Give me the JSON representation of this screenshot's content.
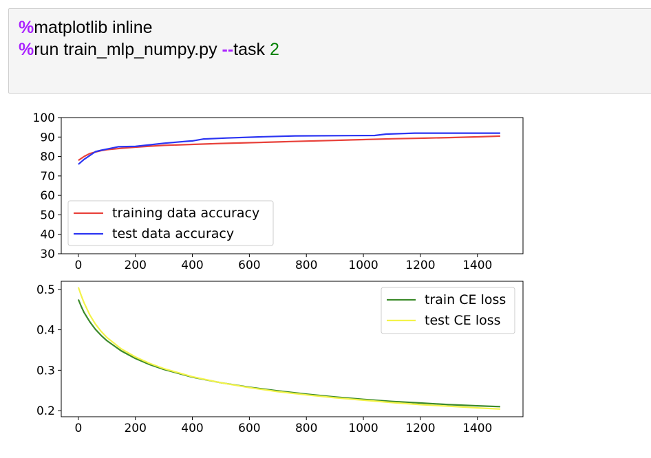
{
  "code": {
    "line1": {
      "magic": "%",
      "text": "matplotlib inline"
    },
    "line2": {
      "magic": "%",
      "cmd": "run train_mlp_numpy.py ",
      "flag": "--",
      "arg": "task ",
      "value": "2"
    }
  },
  "chart_data": [
    {
      "type": "line",
      "title": "",
      "xlabel": "",
      "ylabel": "",
      "xlim": [
        -60,
        1560
      ],
      "ylim": [
        30,
        100
      ],
      "xticks": [
        "0",
        "200",
        "400",
        "600",
        "800",
        "1000",
        "1200",
        "1400"
      ],
      "yticks": [
        "30",
        "40",
        "50",
        "60",
        "70",
        "80",
        "90",
        "100"
      ],
      "legend_position": "lower-left",
      "series": [
        {
          "name": "training data accuracy",
          "color": "#e8413a",
          "x": [
            0,
            20,
            40,
            60,
            80,
            100,
            150,
            200,
            250,
            300,
            400,
            500,
            600,
            700,
            800,
            900,
            1000,
            1100,
            1200,
            1300,
            1400,
            1480
          ],
          "y": [
            78,
            80,
            81.5,
            82.3,
            83,
            83.5,
            84.2,
            84.8,
            85.3,
            85.7,
            86.2,
            86.7,
            87.1,
            87.5,
            87.9,
            88.3,
            88.7,
            89.1,
            89.4,
            89.7,
            90.1,
            90.5
          ]
        },
        {
          "name": "test data accuracy",
          "color": "#2b34f2",
          "x": [
            0,
            20,
            40,
            60,
            80,
            100,
            140,
            200,
            250,
            300,
            380,
            400,
            440,
            520,
            640,
            760,
            1040,
            1080,
            1180,
            1300,
            1400,
            1480
          ],
          "y": [
            76,
            78.5,
            80.5,
            82.5,
            83.2,
            83.8,
            85,
            85.2,
            86,
            86.8,
            87.8,
            88,
            89,
            89.5,
            90.1,
            90.6,
            90.8,
            91.5,
            92,
            92,
            92,
            92
          ]
        }
      ]
    },
    {
      "type": "line",
      "title": "",
      "xlabel": "",
      "ylabel": "",
      "xlim": [
        -60,
        1560
      ],
      "ylim": [
        0.185,
        0.52
      ],
      "xticks": [
        "0",
        "200",
        "400",
        "600",
        "800",
        "1000",
        "1200",
        "1400"
      ],
      "yticks": [
        "0.2",
        "0.3",
        "0.4",
        "0.5"
      ],
      "legend_position": "upper-right",
      "series": [
        {
          "name": "train CE loss",
          "color": "#3b8a2a",
          "x": [
            0,
            10,
            20,
            40,
            60,
            80,
            100,
            150,
            200,
            250,
            300,
            400,
            500,
            600,
            700,
            800,
            900,
            1000,
            1100,
            1200,
            1300,
            1400,
            1480
          ],
          "y": [
            0.475,
            0.458,
            0.443,
            0.42,
            0.401,
            0.386,
            0.373,
            0.348,
            0.329,
            0.314,
            0.302,
            0.283,
            0.269,
            0.258,
            0.249,
            0.241,
            0.234,
            0.228,
            0.223,
            0.219,
            0.215,
            0.212,
            0.21
          ]
        },
        {
          "name": "test CE loss",
          "color": "#f3f34a",
          "x": [
            0,
            10,
            20,
            40,
            60,
            80,
            100,
            150,
            200,
            250,
            300,
            400,
            500,
            600,
            700,
            800,
            900,
            1000,
            1100,
            1200,
            1300,
            1400,
            1480
          ],
          "y": [
            0.505,
            0.485,
            0.467,
            0.437,
            0.414,
            0.396,
            0.381,
            0.353,
            0.333,
            0.317,
            0.304,
            0.284,
            0.269,
            0.257,
            0.247,
            0.239,
            0.232,
            0.226,
            0.22,
            0.215,
            0.211,
            0.207,
            0.204
          ]
        }
      ]
    }
  ]
}
